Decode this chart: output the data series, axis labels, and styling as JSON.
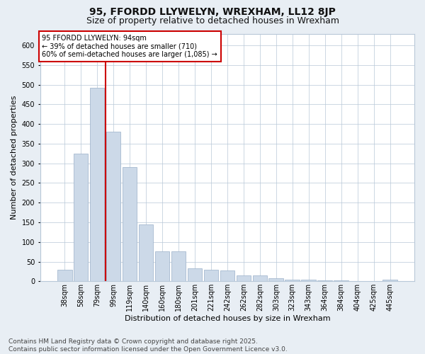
{
  "title": "95, FFORDD LLYWELYN, WREXHAM, LL12 8JP",
  "subtitle": "Size of property relative to detached houses in Wrexham",
  "xlabel": "Distribution of detached houses by size in Wrexham",
  "ylabel": "Number of detached properties",
  "categories": [
    "38sqm",
    "58sqm",
    "79sqm",
    "99sqm",
    "119sqm",
    "140sqm",
    "160sqm",
    "180sqm",
    "201sqm",
    "221sqm",
    "242sqm",
    "262sqm",
    "282sqm",
    "303sqm",
    "323sqm",
    "343sqm",
    "364sqm",
    "384sqm",
    "404sqm",
    "425sqm",
    "445sqm"
  ],
  "values": [
    30,
    325,
    493,
    380,
    291,
    144,
    77,
    77,
    33,
    30,
    28,
    15,
    15,
    7,
    5,
    4,
    3,
    2,
    1,
    1,
    4
  ],
  "bar_color": "#ccd9e8",
  "bar_edge_color": "#9ab0c8",
  "vline_x": 2.5,
  "vline_color": "#cc0000",
  "annotation_text": "95 FFORDD LLYWELYN: 94sqm\n← 39% of detached houses are smaller (710)\n60% of semi-detached houses are larger (1,085) →",
  "annotation_box_color": "#ffffff",
  "annotation_box_edge": "#cc0000",
  "ylim": [
    0,
    630
  ],
  "yticks": [
    0,
    50,
    100,
    150,
    200,
    250,
    300,
    350,
    400,
    450,
    500,
    550,
    600
  ],
  "footer": "Contains HM Land Registry data © Crown copyright and database right 2025.\nContains public sector information licensed under the Open Government Licence v3.0.",
  "title_fontsize": 10,
  "subtitle_fontsize": 9,
  "axis_label_fontsize": 8,
  "tick_fontsize": 7,
  "annotation_fontsize": 7,
  "footer_fontsize": 6.5,
  "bg_color": "#e8eef4",
  "plot_bg_color": "#ffffff",
  "grid_color": "#b8c8d8"
}
